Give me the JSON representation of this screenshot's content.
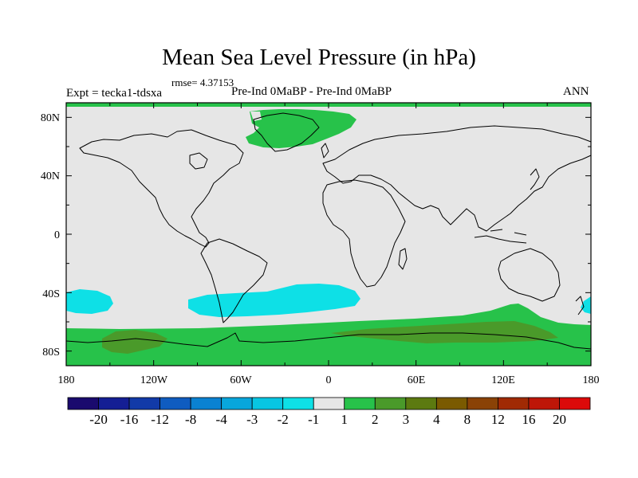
{
  "title": "Mean Sea Level Pressure (in hPa)",
  "rmse": "rmse= 4.37153",
  "expt": "Expt = tecka1-tdsxa",
  "description": "Pre-Ind 0MaBP - Pre-Ind    0MaBP",
  "season": "ANN",
  "axes": {
    "lat_labels": [
      "80N",
      "40N",
      "0",
      "40S",
      "80S"
    ],
    "lon_labels": [
      "180",
      "120W",
      "60W",
      "0",
      "60E",
      "120E",
      "180"
    ]
  },
  "colorbar": {
    "labels": [
      "-20",
      "-16",
      "-12",
      "-8",
      "-4",
      "-3",
      "-2",
      "-1",
      "1",
      "2",
      "3",
      "4",
      "8",
      "12",
      "16",
      "20"
    ],
    "colors": [
      "#1a0a6e",
      "#141e94",
      "#123aa8",
      "#0f5cc0",
      "#0a82d2",
      "#08a6dc",
      "#08c6e2",
      "#0ee0e6",
      "#e6e6e6",
      "#27c24a",
      "#4a9a2a",
      "#5c7a10",
      "#7a5a00",
      "#8a4206",
      "#a02a04",
      "#be1608",
      "#dc0a0a"
    ]
  },
  "map": {
    "background_color": "#e6e6e6",
    "coast_color": "#000000"
  }
}
